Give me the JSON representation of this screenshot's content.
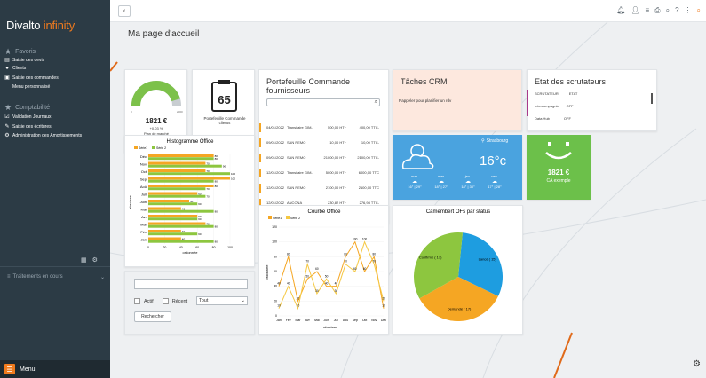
{
  "app": {
    "brand": "Divalto",
    "brand_suffix": " infinity"
  },
  "sidebar": {
    "sections": [
      {
        "title": "Favoris",
        "items": [
          {
            "label": "Saisie des devis",
            "icon": "document-icon"
          },
          {
            "label": "Clients",
            "icon": "person-icon"
          },
          {
            "label": "Saisie des commandes",
            "icon": "cart-icon"
          },
          {
            "label": "Menu personnalisé",
            "icon": ""
          }
        ]
      },
      {
        "title": "Comptabilité",
        "items": [
          {
            "label": "Validation Journaux",
            "icon": "check-icon"
          },
          {
            "label": "Saisie des écritures",
            "icon": "edit-icon"
          },
          {
            "label": "Administration des Amortissements",
            "icon": "gear-icon"
          }
        ]
      }
    ],
    "traitements": "Traitements en cours",
    "menu_label": "Menu"
  },
  "main": {
    "page_title": "Ma page d'accueil",
    "gauge": {
      "value": "1821 €",
      "delta": "+0,03 %",
      "label": "Plan de marché",
      "min": "0",
      "max": "2000",
      "fill_fraction": 0.91
    },
    "clipboard": {
      "number": "65",
      "label": "Portefeuille Commande clients"
    },
    "portefeuille": {
      "title": "Portefeuille Commande fournisseurs",
      "rows": [
        {
          "date": "04/01/2022",
          "name": "Transitaire GIM-",
          "ht": "500,00 HT~",
          "ttc": "400,00 TTC-"
        },
        {
          "date": "09/01/2022",
          "name": "SAN REMO",
          "ht": "10,00 HT~",
          "ttc": "10,00 TTC-"
        },
        {
          "date": "09/01/2022",
          "name": "SAN REMO",
          "ht": "21000,00 HT~",
          "ttc": "2100,00 TTC-"
        },
        {
          "date": "12/01/2022",
          "name": "Transitaire GIM-",
          "ht": "5000,00 HT~",
          "ttc": "6000,00 TTC"
        },
        {
          "date": "12/01/2022",
          "name": "SAN REMO",
          "ht": "2100,00 HT~",
          "ttc": "2100,00 TTC"
        },
        {
          "date": "12/01/2022",
          "name": "ANCONA",
          "ht": "230,82 HT~",
          "ttc": "276,98 TTC-"
        }
      ]
    },
    "taches": {
      "title": "Tâches CRM",
      "item": "Rappeler pour planifier un rdv"
    },
    "scrutateurs": {
      "title": "Etat des scrutateurs",
      "header": [
        "SCRUTATEUR",
        "ETAT"
      ],
      "rows": [
        [
          "Intercompagnie",
          "OFF"
        ],
        [
          "Data Hub",
          "OFF"
        ]
      ]
    },
    "weather": {
      "city": "Strasbourg",
      "temp": "16°c",
      "days": [
        {
          "day": "mar.",
          "range": "16° | 29°"
        },
        {
          "day": "mer.",
          "range": "18° | 27°"
        },
        {
          "day": "jeu.",
          "range": "18° | 30°"
        },
        {
          "day": "ven.",
          "range": "17° | 28°"
        }
      ]
    },
    "smiley": {
      "value": "1821 €",
      "label": "CA exemple"
    },
    "filter": {
      "actif": "Actif",
      "recent": "Récent",
      "select_value": "Tout",
      "button": "Rechercher"
    }
  },
  "colors": {
    "orange": "#f07b1e",
    "bar_orange": "#f5a623",
    "bar_green": "#8dc63f",
    "sidebar": "#2c3b45",
    "weather": "#4aa3df",
    "smiley": "#6cc04a"
  },
  "chart_data": [
    {
      "type": "bar",
      "title": "Histogramme Office",
      "xlabel": "ordonnée",
      "ylabel": "abscisse",
      "categories": [
        "Déc",
        "Nov",
        "Oct",
        "Sep",
        "Aoû",
        "Juil",
        "Juin",
        "Mai",
        "Avr",
        "Mar",
        "Fév",
        "Jan"
      ],
      "series": [
        {
          "name": "Série1",
          "values": [
            80,
            70,
            70,
            100,
            80,
            60,
            50,
            40,
            60,
            70,
            40,
            40
          ],
          "color": "#f5a623"
        },
        {
          "name": "Série 2",
          "values": [
            80,
            90,
            100,
            80,
            70,
            70,
            60,
            80,
            60,
            80,
            60,
            80
          ],
          "color": "#8dc63f"
        }
      ],
      "xlim": [
        0,
        100
      ]
    },
    {
      "type": "line",
      "title": "Courbe Office",
      "xlabel": "abscisse",
      "ylabel": "ordonnée",
      "categories": [
        "Jan",
        "Fév",
        "Mar",
        "Avr",
        "Mai",
        "Juin",
        "Juil",
        "Aoû",
        "Sep",
        "Oct",
        "Nov",
        "Déc"
      ],
      "series": [
        {
          "name": "Série1",
          "values": [
            40,
            80,
            20,
            50,
            60,
            40,
            40,
            80,
            100,
            60,
            80,
            10
          ],
          "color": "#f5a623"
        },
        {
          "name": "Série 2",
          "values": [
            10,
            40,
            10,
            70,
            30,
            50,
            30,
            70,
            60,
            100,
            70,
            20
          ],
          "color": "#f5c842"
        }
      ],
      "ylim": [
        0,
        120
      ]
    },
    {
      "type": "pie",
      "title": "Camembert OFs par status",
      "slices": [
        {
          "label": "Confirmé (",
          "value": 17,
          "color": "#8dc63f"
        },
        {
          "label": "Lancé (",
          "value": 15,
          "color": "#1e9de0"
        },
        {
          "label": "Demandé (",
          "value": 17,
          "color": "#f5a623"
        }
      ]
    }
  ]
}
